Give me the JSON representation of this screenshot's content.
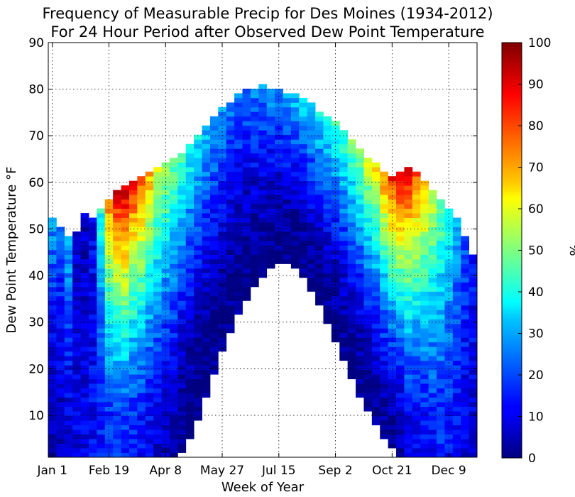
{
  "chart_data": {
    "type": "heatmap",
    "title": "Frequency of Measurable Precip for Des Moines (1934-2012)",
    "subtitle": "For 24 Hour Period after Observed Dew Point Temperature",
    "xlabel": "Week of Year",
    "ylabel": "Dew Point Temperature °F",
    "xlim": [
      1,
      53
    ],
    "ylim": [
      1,
      90
    ],
    "x_ticks": [
      {
        "week": 1,
        "label": "Jan 1"
      },
      {
        "week": 8,
        "label": "Feb 19"
      },
      {
        "week": 15,
        "label": "Apr 8"
      },
      {
        "week": 22,
        "label": "May 27"
      },
      {
        "week": 29,
        "label": "Jul 15"
      },
      {
        "week": 36,
        "label": "Sep 2"
      },
      {
        "week": 43,
        "label": "Oct 21"
      },
      {
        "week": 50,
        "label": "Dec 9"
      }
    ],
    "y_ticks": [
      10,
      20,
      30,
      40,
      50,
      60,
      70,
      80,
      90
    ],
    "grid": true,
    "colormap": "jet",
    "colorbar": {
      "label": "%",
      "range": [
        0,
        100
      ],
      "ticks": [
        0,
        10,
        20,
        30,
        40,
        50,
        60,
        70,
        80,
        90,
        100
      ]
    },
    "dewpoint_bounds_by_week": {
      "weeks": [
        1,
        2,
        3,
        4,
        5,
        6,
        7,
        8,
        9,
        10,
        11,
        12,
        13,
        14,
        15,
        16,
        17,
        18,
        19,
        20,
        21,
        22,
        23,
        24,
        25,
        26,
        27,
        28,
        29,
        30,
        31,
        32,
        33,
        34,
        35,
        36,
        37,
        38,
        39,
        40,
        41,
        42,
        43,
        44,
        45,
        46,
        47,
        48,
        49,
        50,
        51,
        52,
        53
      ],
      "min_dewpoint": [
        1,
        1,
        1,
        1,
        1,
        1,
        1,
        1,
        1,
        1,
        1,
        1,
        1,
        1,
        1,
        1,
        2,
        5,
        9,
        14,
        19,
        24,
        28,
        32,
        35,
        38,
        40,
        42,
        43,
        43,
        42,
        40,
        37,
        34,
        30,
        26,
        22,
        18,
        14,
        11,
        8,
        5,
        3,
        1,
        1,
        1,
        1,
        1,
        1,
        1,
        1,
        1,
        1
      ],
      "max_dewpoint": [
        52,
        50,
        48,
        49,
        53,
        52,
        54,
        56,
        58,
        59,
        60,
        61,
        62,
        63,
        64,
        65,
        66,
        68,
        70,
        72,
        74,
        76,
        77,
        79,
        80,
        80,
        81,
        80,
        80,
        79,
        79,
        78,
        77,
        75,
        74,
        73,
        71,
        69,
        67,
        65,
        64,
        62,
        61,
        62,
        63,
        62,
        60,
        58,
        56,
        54,
        52,
        48,
        44
      ],
      "precip_pct_at_max_dewpoint": [
        28,
        22,
        30,
        8,
        6,
        12,
        40,
        75,
        90,
        95,
        85,
        80,
        70,
        60,
        55,
        50,
        45,
        40,
        36,
        32,
        30,
        28,
        26,
        25,
        24,
        25,
        26,
        27,
        28,
        30,
        32,
        34,
        36,
        38,
        40,
        42,
        45,
        48,
        52,
        58,
        65,
        75,
        85,
        90,
        92,
        80,
        70,
        60,
        50,
        40,
        30,
        20,
        15
      ],
      "precip_pct_near_10F": [
        5,
        6,
        8,
        10,
        10,
        12,
        14,
        15,
        16,
        16,
        14,
        12,
        10,
        8,
        6,
        4,
        0,
        0,
        0,
        0,
        0,
        0,
        0,
        0,
        0,
        0,
        0,
        0,
        0,
        0,
        0,
        0,
        0,
        0,
        0,
        0,
        0,
        0,
        0,
        0,
        0,
        0,
        0,
        3,
        8,
        10,
        12,
        14,
        15,
        14,
        12,
        10,
        8
      ]
    }
  }
}
